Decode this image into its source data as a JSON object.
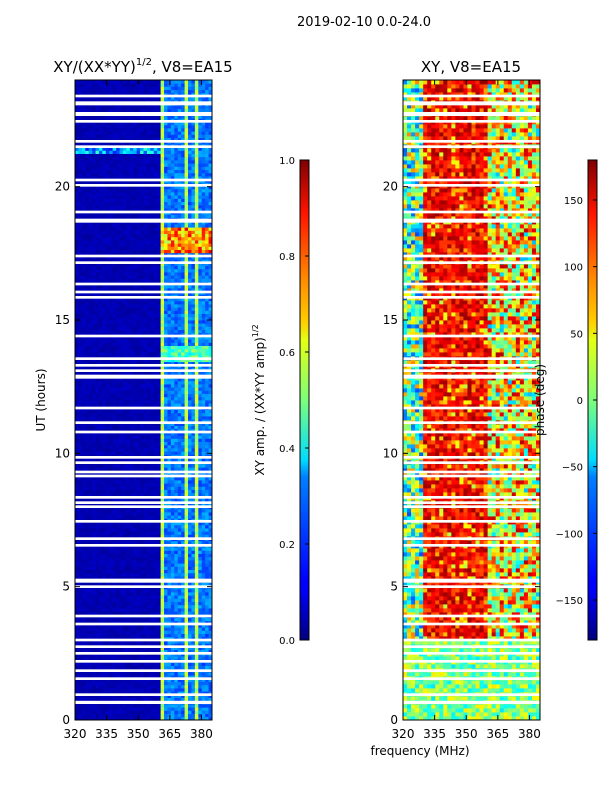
{
  "figure": {
    "suptitle": "2019-02-10 0.0-24.0",
    "shared_xlabel": "frequency (MHz)"
  },
  "chart_data": [
    {
      "type": "heatmap",
      "title_text": "XY/(XX*YY)",
      "title_sup": "1/2",
      "title_suffix": ", V8=EA15",
      "xlabel": "",
      "ylabel": "UT (hours)",
      "xlim": [
        320,
        385
      ],
      "ylim": [
        0,
        24
      ],
      "xticks": [
        320,
        335,
        350,
        365,
        380
      ],
      "yticks": [
        0,
        5,
        10,
        15,
        20
      ],
      "colorbar": {
        "label_text": "XY amp. / (XX*YY amp)",
        "label_sup": "1/2",
        "range": [
          0.0,
          1.0
        ],
        "ticks": [
          "0.0",
          "0.2",
          "0.4",
          "0.6",
          "0.8",
          "1.0"
        ],
        "colormap": "jet"
      },
      "flagged_bands_hours": [
        [
          0.6,
          0.72
        ],
        [
          0.9,
          1.0
        ],
        [
          1.5,
          1.6
        ],
        [
          1.8,
          1.9
        ],
        [
          2.15,
          2.25
        ],
        [
          2.45,
          2.55
        ],
        [
          2.7,
          2.8
        ],
        [
          2.95,
          3.05
        ],
        [
          3.55,
          3.65
        ],
        [
          3.85,
          3.95
        ],
        [
          4.95,
          5.05
        ],
        [
          5.15,
          5.3
        ],
        [
          6.5,
          6.6
        ],
        [
          6.75,
          6.85
        ],
        [
          7.4,
          7.5
        ],
        [
          7.95,
          8.05
        ],
        [
          8.1,
          8.2
        ],
        [
          8.3,
          8.4
        ],
        [
          9.1,
          9.2
        ],
        [
          9.25,
          9.35
        ],
        [
          9.6,
          9.7
        ],
        [
          9.8,
          9.9
        ],
        [
          10.75,
          10.85
        ],
        [
          11.1,
          11.2
        ],
        [
          11.65,
          11.75
        ],
        [
          12.8,
          12.95
        ],
        [
          13.05,
          13.15
        ],
        [
          13.25,
          13.35
        ],
        [
          13.5,
          13.6
        ],
        [
          14.35,
          14.45
        ],
        [
          15.8,
          15.9
        ],
        [
          16.0,
          16.1
        ],
        [
          16.3,
          16.4
        ],
        [
          17.1,
          17.2
        ],
        [
          17.35,
          17.45
        ],
        [
          18.65,
          18.8
        ],
        [
          19.0,
          19.1
        ],
        [
          20.0,
          20.1
        ],
        [
          20.2,
          20.3
        ],
        [
          21.45,
          21.55
        ],
        [
          21.65,
          21.75
        ],
        [
          22.4,
          22.5
        ],
        [
          22.65,
          22.8
        ],
        [
          23.05,
          23.2
        ],
        [
          23.35,
          23.45
        ]
      ],
      "amplitude_description": [
        {
          "freq_range_mhz": [
            320,
            361
          ],
          "amplitude": 0.05
        },
        {
          "freq_range_mhz": [
            361,
            385
          ],
          "amplitude": 0.25
        },
        {
          "freq_range_mhz": [
            361,
            385
          ],
          "hours": [
            17.5,
            18.5
          ],
          "amplitude": 0.75
        },
        {
          "freq_range_mhz": [
            361,
            385
          ],
          "hours": [
            13.4,
            14.0
          ],
          "amplitude": 0.45
        }
      ]
    },
    {
      "type": "heatmap",
      "title": "XY, V8=EA15",
      "xlabel": "",
      "ylabel": "",
      "xlim": [
        320,
        385
      ],
      "ylim": [
        0,
        24
      ],
      "xticks": [
        320,
        335,
        350,
        365,
        380
      ],
      "yticks": [
        0,
        5,
        10,
        15,
        20
      ],
      "colorbar": {
        "label": "phase (deg)",
        "range": [
          -180,
          180
        ],
        "ticks": [
          "−150",
          "−100",
          "−50",
          "0",
          "50",
          "100",
          "150"
        ],
        "colormap": "jet"
      },
      "phase_description": [
        {
          "freq_range_mhz": [
            320,
            330
          ],
          "phase_deg": -40
        },
        {
          "freq_range_mhz": [
            330,
            360
          ],
          "phase_deg": 120
        },
        {
          "freq_range_mhz": [
            360,
            385
          ],
          "phase_deg": 0
        }
      ]
    }
  ]
}
